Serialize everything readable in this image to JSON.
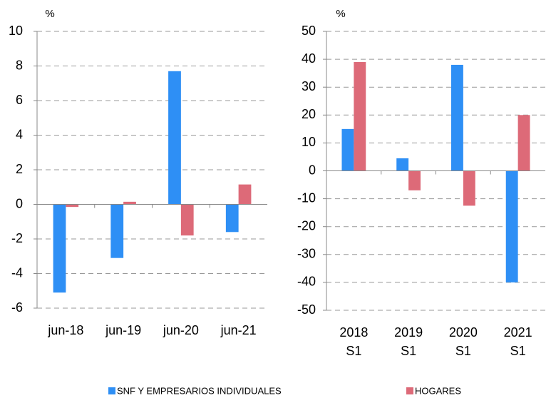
{
  "chart_data": [
    {
      "type": "bar",
      "y_label": "%",
      "categories": [
        "jun-18",
        "jun-19",
        "jun-20",
        "jun-21"
      ],
      "series": [
        {
          "name": "SNF Y EMPRESARIOS INDIVIDUALES",
          "color": "#2e8ff5",
          "values": [
            -5.1,
            -3.1,
            7.7,
            -1.6
          ]
        },
        {
          "name": "HOGARES",
          "color": "#dd6a78",
          "values": [
            -0.15,
            0.15,
            -1.8,
            1.15
          ]
        }
      ],
      "ylim": [
        -6,
        10
      ],
      "yticks": [
        -6,
        -4,
        -2,
        0,
        2,
        4,
        6,
        8,
        10
      ],
      "grid": true
    },
    {
      "type": "bar",
      "y_label": "%",
      "categories": [
        [
          "2018",
          "S1"
        ],
        [
          "2019",
          "S1"
        ],
        [
          "2020",
          "S1"
        ],
        [
          "2021",
          "S1"
        ]
      ],
      "series": [
        {
          "color": "#2e8ff5",
          "values": [
            15,
            4.5,
            38,
            -40
          ]
        },
        {
          "color": "#dd6a78",
          "values": [
            39,
            -7,
            -12.5,
            20
          ]
        }
      ],
      "ylim": [
        -50,
        50
      ],
      "yticks": [
        -50,
        -40,
        -30,
        -20,
        -10,
        0,
        10,
        20,
        30,
        40,
        50
      ],
      "grid": true
    }
  ]
}
